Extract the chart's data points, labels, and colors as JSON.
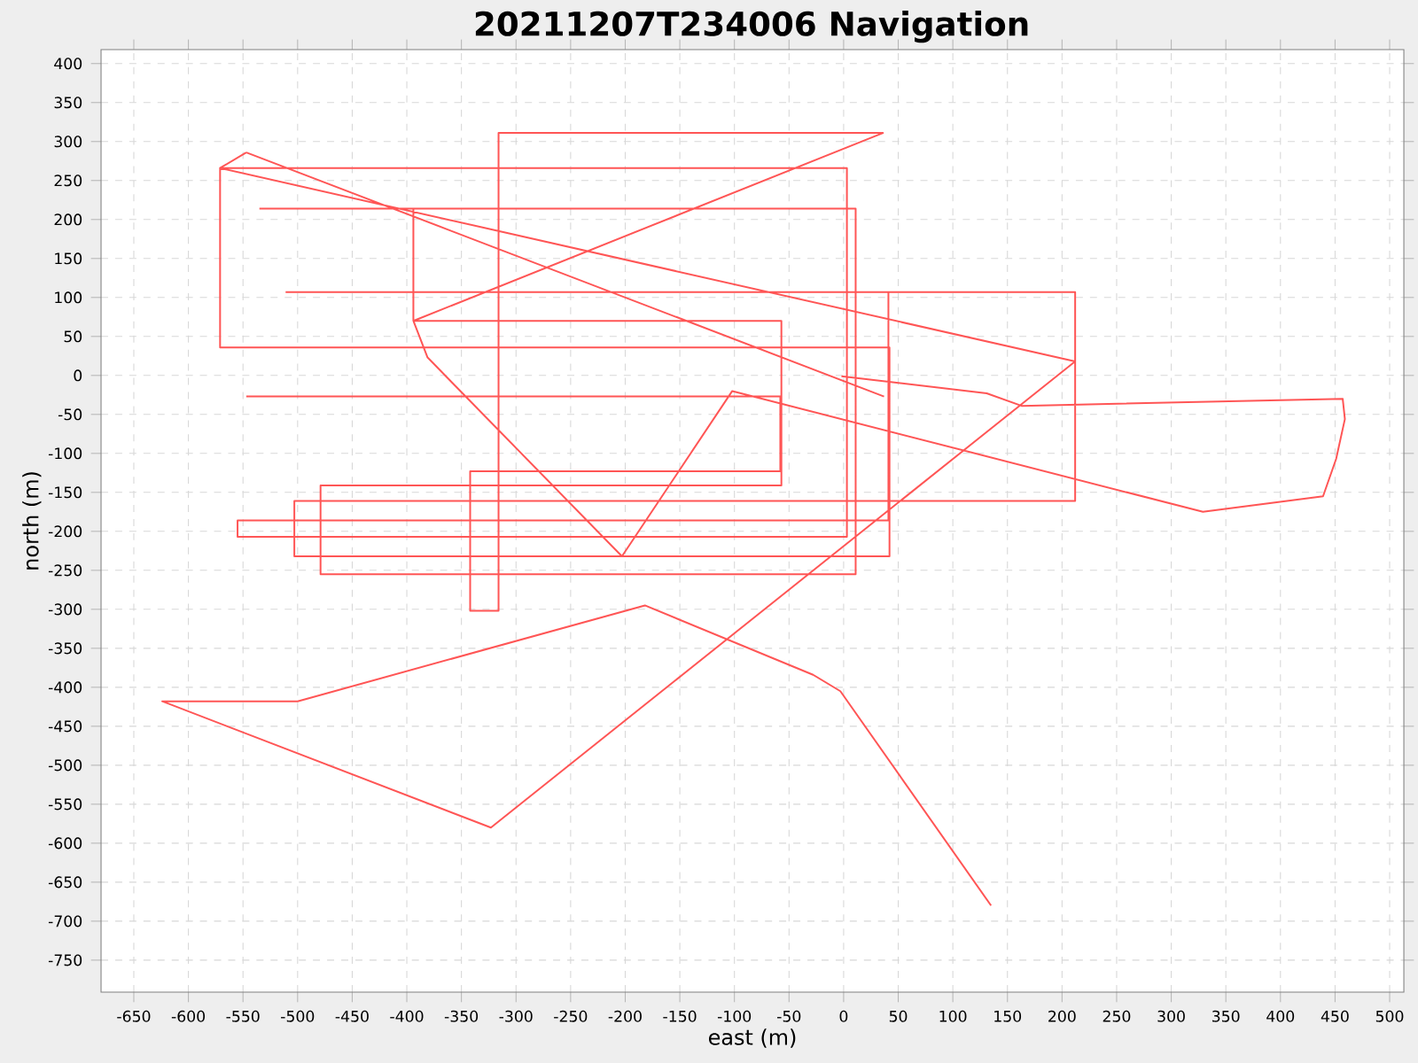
{
  "chart_data": {
    "type": "line",
    "title": "20211207T234006 Navigation",
    "xlabel": "east (m)",
    "ylabel": "north (m)",
    "xlim": [
      -680,
      513
    ],
    "ylim": [
      -791,
      418
    ],
    "xticks": [
      -650,
      -600,
      -550,
      -500,
      -450,
      -400,
      -350,
      -300,
      -250,
      -200,
      -150,
      -100,
      -50,
      0,
      50,
      100,
      150,
      200,
      250,
      300,
      350,
      400,
      450,
      500
    ],
    "yticks": [
      -750,
      -700,
      -650,
      -600,
      -550,
      -500,
      -450,
      -400,
      -350,
      -300,
      -250,
      -200,
      -150,
      -100,
      -50,
      0,
      50,
      100,
      150,
      200,
      250,
      300,
      350,
      400
    ],
    "grid": true,
    "series": [
      {
        "color": "#ff5555",
        "x": [
          -511,
          212,
          212,
          -503,
          -503,
          42,
          42,
          -571,
          -571,
          3,
          3,
          -555,
          -555,
          41,
          41,
          null,
          -547,
          -571,
          212,
          -323,
          -624,
          -500,
          -182,
          -28,
          -3,
          135,
          null,
          -547,
          37,
          null,
          -535,
          11,
          11,
          -479,
          -479,
          -57,
          -57,
          -394,
          -394,
          null,
          -394,
          36,
          -316,
          -316,
          -342,
          -342,
          -58,
          -58,
          -547,
          null,
          -394,
          -381,
          -203,
          -102,
          329,
          439,
          451,
          459,
          457,
          163,
          131,
          -2
        ],
        "values": [
          107,
          107,
          -161,
          -161,
          -232,
          -232,
          36,
          36,
          266,
          266,
          -207,
          -207,
          -186,
          -186,
          107,
          null,
          286,
          266,
          18,
          -580,
          -418,
          -418,
          -295,
          -384,
          -405,
          -680,
          null,
          286,
          -27,
          null,
          214,
          214,
          -255,
          -255,
          -141,
          -141,
          70,
          70,
          214,
          null,
          70,
          311,
          311,
          -302,
          -302,
          -123,
          -123,
          -27,
          -27,
          null,
          70,
          23,
          -232,
          -20,
          -175,
          -155,
          -107,
          -56,
          -30,
          -39,
          -23,
          -1
        ]
      }
    ]
  }
}
